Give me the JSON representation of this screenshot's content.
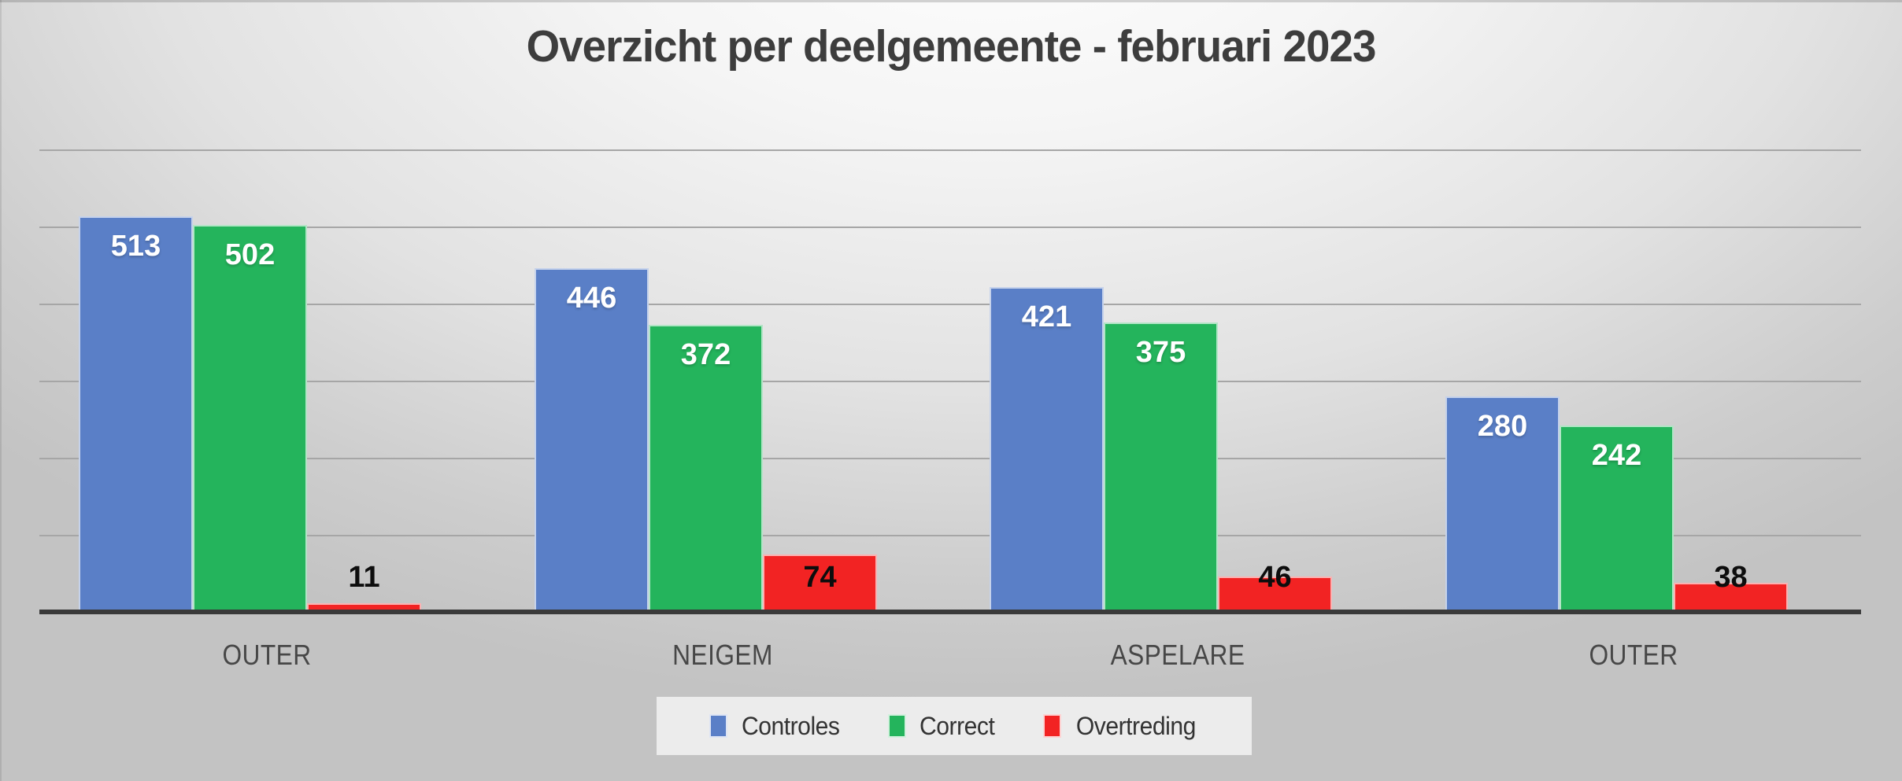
{
  "chart_data": {
    "type": "bar",
    "title": "Overzicht per deelgemeente - februari 2023",
    "categories": [
      "OUTER",
      "NEIGEM",
      "ASPELARE",
      "OUTER"
    ],
    "series": [
      {
        "name": "Controles",
        "color": "#5a7fc7",
        "label_style": "inside",
        "values": [
          513,
          446,
          421,
          280
        ]
      },
      {
        "name": "Correct",
        "color": "#24b45c",
        "label_style": "inside",
        "values": [
          502,
          372,
          375,
          242
        ]
      },
      {
        "name": "Overtreding",
        "color": "#f22323",
        "label_style": "outside",
        "values": [
          11,
          74,
          46,
          38
        ]
      }
    ],
    "ylim": [
      0,
      600
    ],
    "gridline_interval": 100,
    "grid": true,
    "legend_position": "bottom",
    "colors": {
      "title_text": "#3d3d3d",
      "category_text": "#474747",
      "gridline": "#a6a6a6",
      "axis_line": "#3a3a3a",
      "legend_background": "#ececec",
      "inside_label_text": "#ffffff",
      "outside_label_text": "#0d0d0d"
    }
  }
}
